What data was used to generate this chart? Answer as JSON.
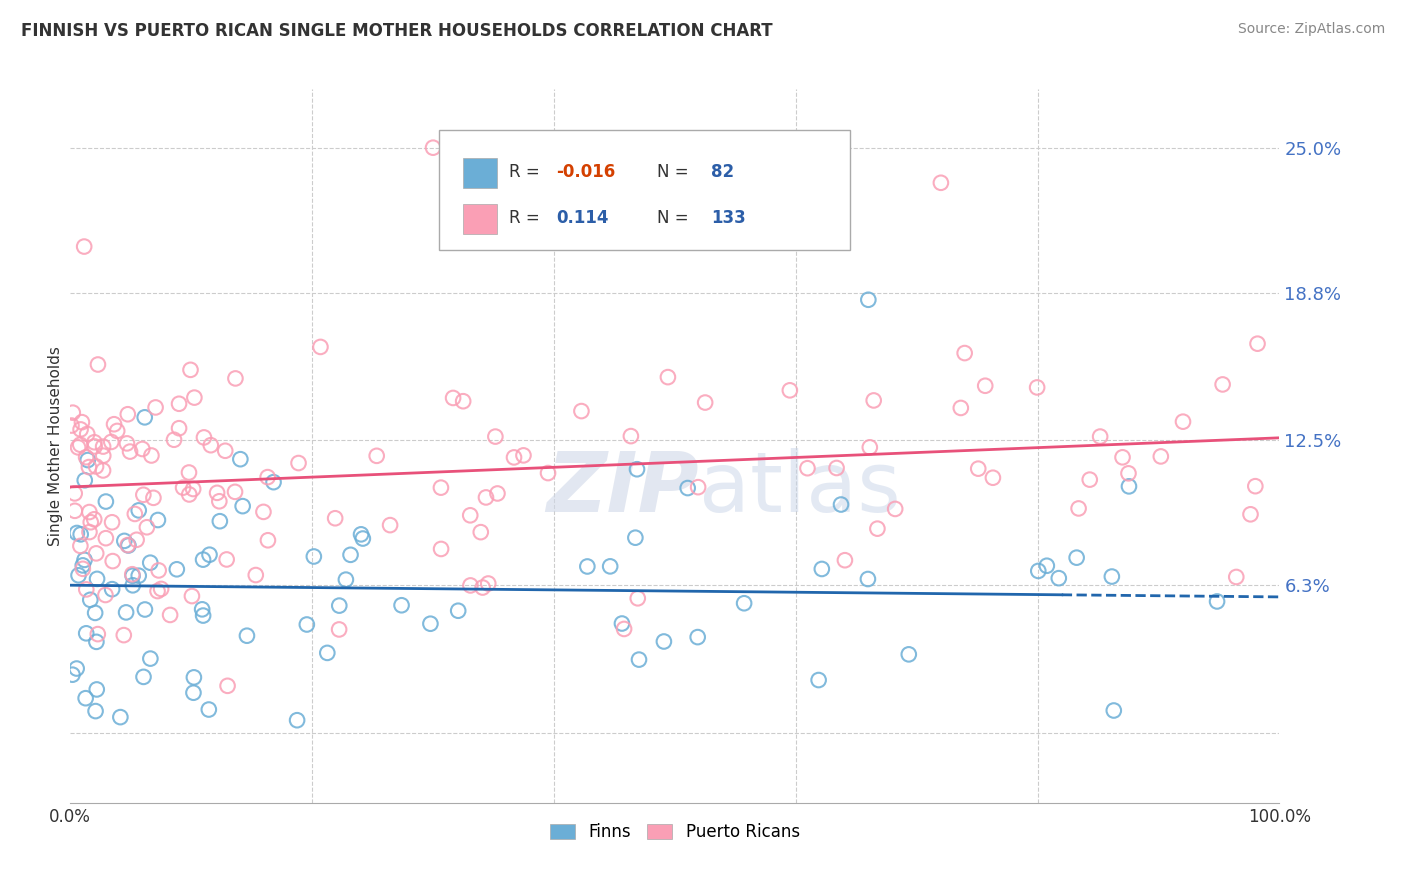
{
  "title": "FINNISH VS PUERTO RICAN SINGLE MOTHER HOUSEHOLDS CORRELATION CHART",
  "source": "Source: ZipAtlas.com",
  "ylabel": "Single Mother Households",
  "ytick_vals": [
    0.0,
    6.3,
    12.5,
    18.8,
    25.0
  ],
  "ytick_labels": [
    "",
    "6.3%",
    "12.5%",
    "18.8%",
    "25.0%"
  ],
  "xmin": 0.0,
  "xmax": 100.0,
  "ymin": -3.0,
  "ymax": 27.5,
  "finn_R": -0.016,
  "finn_N": 82,
  "pr_R": 0.114,
  "pr_N": 133,
  "finn_color": "#6baed6",
  "pr_color": "#fa9fb5",
  "finn_line_color": "#2166ac",
  "pr_line_color": "#e8517a",
  "neg_r_color": "#d44000",
  "pos_r_color": "#2c5ea8",
  "n_color": "#2c5ea8",
  "background_color": "#ffffff",
  "grid_color": "#cccccc",
  "finn_legend_label": "Finns",
  "pr_legend_label": "Puerto Ricans",
  "finn_trend_y0": 6.3,
  "finn_trend_y100": 5.8,
  "pr_trend_y0": 10.5,
  "pr_trend_y100": 12.6
}
